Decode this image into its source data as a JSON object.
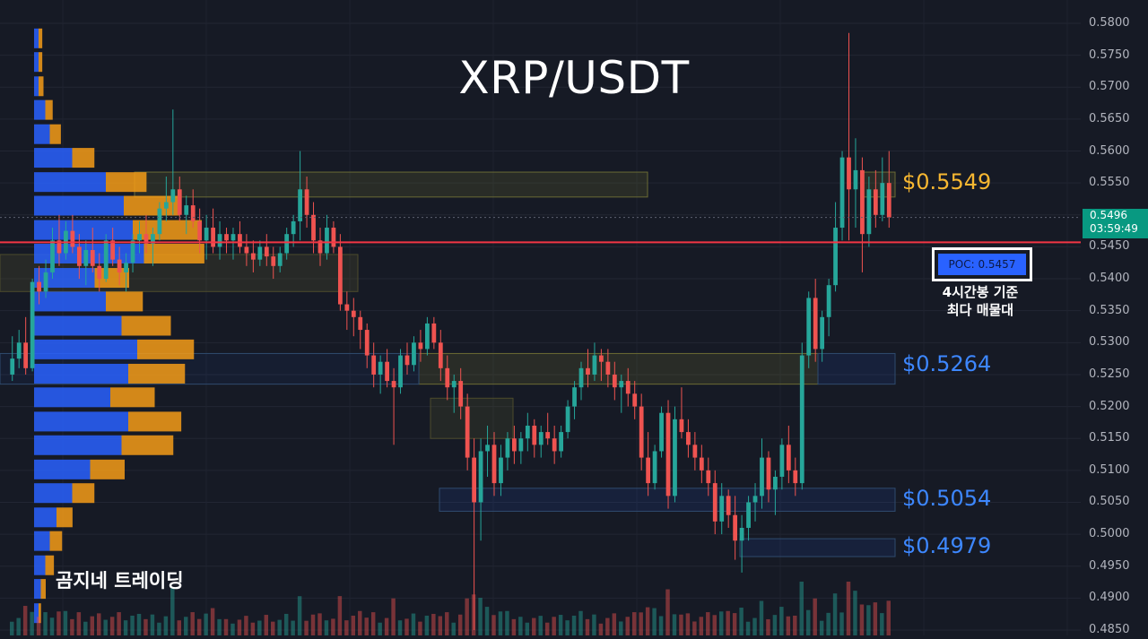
{
  "title": "XRP/USDT",
  "watermark": "곰지네 트레이딩",
  "colors": {
    "background": "#161a25",
    "up": "#26a69a",
    "down": "#ef5350",
    "poc_line": "#f23645",
    "yellow_label": "#f7b731",
    "blue_label": "#3d87ff",
    "vp_blue": "#2962ff",
    "vp_orange": "#f59c17"
  },
  "price_axis": {
    "ticks": [
      "0.5800",
      "0.5750",
      "0.5700",
      "0.5650",
      "0.5600",
      "0.5550",
      "0.5500",
      "0.5450",
      "0.5400",
      "0.5350",
      "0.5300",
      "0.5250",
      "0.5200",
      "0.5150",
      "0.5100",
      "0.5050",
      "0.5000",
      "0.4950",
      "0.4900",
      "0.4850"
    ],
    "current_price": "0.5496",
    "countdown": "03:59:49"
  },
  "levels": [
    {
      "label": "$0.5549",
      "value": 0.5549,
      "color": "yellow"
    },
    {
      "label": "$0.5264",
      "value": 0.5264,
      "color": "blue"
    },
    {
      "label": "$0.5054",
      "value": 0.5054,
      "color": "blue"
    },
    {
      "label": "$0.4979",
      "value": 0.4979,
      "color": "blue"
    }
  ],
  "poc": {
    "label": "POC: 0.5457",
    "value": 0.5457,
    "note_line1": "4시간봉 기준",
    "note_line2": "최다 매물대"
  },
  "chart_data": {
    "type": "candlestick",
    "title": "XRP/USDT",
    "timeframe": "4h",
    "ylim": [
      0.485,
      0.58
    ],
    "grid": true,
    "volume_profile": {
      "bins": [
        {
          "price": 0.5775,
          "up": 0.2,
          "down": 0.3
        },
        {
          "price": 0.5738,
          "up": 0.2,
          "down": 0.3
        },
        {
          "price": 0.57,
          "up": 0.2,
          "down": 0.4
        },
        {
          "price": 0.5663,
          "up": 0.5,
          "down": 0.6
        },
        {
          "price": 0.5625,
          "up": 0.7,
          "down": 0.9
        },
        {
          "price": 0.5588,
          "up": 1.7,
          "down": 1.8
        },
        {
          "price": 0.555,
          "up": 3.2,
          "down": 3.3
        },
        {
          "price": 0.5513,
          "up": 4.0,
          "down": 4.5
        },
        {
          "price": 0.5475,
          "up": 4.4,
          "down": 5.6
        },
        {
          "price": 0.5438,
          "up": 4.9,
          "down": 4.9
        },
        {
          "price": 0.54,
          "up": 2.7,
          "down": 2.8
        },
        {
          "price": 0.5363,
          "up": 3.2,
          "down": 3.0
        },
        {
          "price": 0.5325,
          "up": 3.9,
          "down": 4.0
        },
        {
          "price": 0.5288,
          "up": 4.6,
          "down": 4.6
        },
        {
          "price": 0.525,
          "up": 4.2,
          "down": 4.6
        },
        {
          "price": 0.5213,
          "up": 3.4,
          "down": 3.6
        },
        {
          "price": 0.5175,
          "up": 4.2,
          "down": 4.3
        },
        {
          "price": 0.5138,
          "up": 3.9,
          "down": 4.2
        },
        {
          "price": 0.51,
          "up": 2.5,
          "down": 2.8
        },
        {
          "price": 0.5063,
          "up": 1.7,
          "down": 1.8
        },
        {
          "price": 0.5025,
          "up": 1.0,
          "down": 1.3
        },
        {
          "price": 0.4988,
          "up": 0.7,
          "down": 1.0
        },
        {
          "price": 0.495,
          "up": 0.5,
          "down": 0.7
        },
        {
          "price": 0.4913,
          "up": 0.3,
          "down": 0.4
        },
        {
          "price": 0.4875,
          "up": 0.2,
          "down": 0.2
        }
      ]
    },
    "candles": [
      [
        0.525,
        0.531,
        0.524,
        0.5275
      ],
      [
        0.5275,
        0.532,
        0.526,
        0.53
      ],
      [
        0.53,
        0.534,
        0.525,
        0.526
      ],
      [
        0.526,
        0.54,
        0.5255,
        0.5395
      ],
      [
        0.5395,
        0.542,
        0.536,
        0.538
      ],
      [
        0.538,
        0.543,
        0.537,
        0.541
      ],
      [
        0.541,
        0.548,
        0.54,
        0.546
      ],
      [
        0.546,
        0.55,
        0.542,
        0.544
      ],
      [
        0.544,
        0.549,
        0.543,
        0.5475
      ],
      [
        0.5475,
        0.55,
        0.544,
        0.545
      ],
      [
        0.545,
        0.547,
        0.54,
        0.542
      ],
      [
        0.542,
        0.546,
        0.539,
        0.5445
      ],
      [
        0.5445,
        0.548,
        0.541,
        0.542
      ],
      [
        0.542,
        0.544,
        0.538,
        0.54
      ],
      [
        0.54,
        0.547,
        0.5395,
        0.546
      ],
      [
        0.546,
        0.548,
        0.542,
        0.543
      ],
      [
        0.543,
        0.545,
        0.539,
        0.541
      ],
      [
        0.541,
        0.544,
        0.538,
        0.5425
      ],
      [
        0.5425,
        0.547,
        0.541,
        0.546
      ],
      [
        0.546,
        0.549,
        0.544,
        0.547
      ],
      [
        0.547,
        0.55,
        0.544,
        0.5455
      ],
      [
        0.5455,
        0.548,
        0.542,
        0.547
      ],
      [
        0.547,
        0.552,
        0.546,
        0.551
      ],
      [
        0.551,
        0.556,
        0.549,
        0.552
      ],
      [
        0.552,
        0.5665,
        0.55,
        0.554
      ],
      [
        0.554,
        0.556,
        0.549,
        0.55
      ],
      [
        0.55,
        0.553,
        0.547,
        0.5515
      ],
      [
        0.5515,
        0.554,
        0.548,
        0.549
      ],
      [
        0.549,
        0.551,
        0.544,
        0.546
      ],
      [
        0.546,
        0.55,
        0.543,
        0.548
      ],
      [
        0.548,
        0.551,
        0.544,
        0.545
      ],
      [
        0.545,
        0.549,
        0.543,
        0.547
      ],
      [
        0.547,
        0.548,
        0.544,
        0.546
      ],
      [
        0.546,
        0.548,
        0.543,
        0.547
      ],
      [
        0.547,
        0.549,
        0.544,
        0.545
      ],
      [
        0.545,
        0.547,
        0.542,
        0.544
      ],
      [
        0.544,
        0.546,
        0.541,
        0.543
      ],
      [
        0.543,
        0.546,
        0.542,
        0.545
      ],
      [
        0.545,
        0.547,
        0.542,
        0.5435
      ],
      [
        0.5435,
        0.545,
        0.54,
        0.542
      ],
      [
        0.542,
        0.545,
        0.541,
        0.544
      ],
      [
        0.544,
        0.548,
        0.543,
        0.547
      ],
      [
        0.547,
        0.55,
        0.545,
        0.549
      ],
      [
        0.549,
        0.56,
        0.546,
        0.554
      ],
      [
        0.554,
        0.556,
        0.548,
        0.55
      ],
      [
        0.55,
        0.552,
        0.544,
        0.546
      ],
      [
        0.546,
        0.548,
        0.542,
        0.544
      ],
      [
        0.544,
        0.55,
        0.543,
        0.548
      ],
      [
        0.548,
        0.549,
        0.544,
        0.545
      ],
      [
        0.545,
        0.547,
        0.535,
        0.536
      ],
      [
        0.536,
        0.538,
        0.532,
        0.535
      ],
      [
        0.535,
        0.537,
        0.531,
        0.534
      ],
      [
        0.534,
        0.535,
        0.529,
        0.532
      ],
      [
        0.532,
        0.533,
        0.526,
        0.528
      ],
      [
        0.528,
        0.53,
        0.523,
        0.525
      ],
      [
        0.525,
        0.528,
        0.522,
        0.527
      ],
      [
        0.527,
        0.529,
        0.523,
        0.524
      ],
      [
        0.524,
        0.526,
        0.514,
        0.523
      ],
      [
        0.523,
        0.529,
        0.522,
        0.528
      ],
      [
        0.528,
        0.53,
        0.525,
        0.5265
      ],
      [
        0.5265,
        0.531,
        0.5255,
        0.53
      ],
      [
        0.53,
        0.532,
        0.527,
        0.529
      ],
      [
        0.529,
        0.534,
        0.528,
        0.533
      ],
      [
        0.533,
        0.534,
        0.529,
        0.53
      ],
      [
        0.53,
        0.532,
        0.524,
        0.526
      ],
      [
        0.526,
        0.528,
        0.521,
        0.523
      ],
      [
        0.523,
        0.525,
        0.519,
        0.524
      ],
      [
        0.524,
        0.526,
        0.518,
        0.52
      ],
      [
        0.52,
        0.522,
        0.51,
        0.512
      ],
      [
        0.512,
        0.515,
        0.485,
        0.505
      ],
      [
        0.505,
        0.515,
        0.499,
        0.513
      ],
      [
        0.513,
        0.517,
        0.509,
        0.514
      ],
      [
        0.514,
        0.516,
        0.506,
        0.508
      ],
      [
        0.508,
        0.514,
        0.506,
        0.512
      ],
      [
        0.512,
        0.516,
        0.51,
        0.515
      ],
      [
        0.515,
        0.517,
        0.511,
        0.513
      ],
      [
        0.513,
        0.516,
        0.511,
        0.515
      ],
      [
        0.515,
        0.519,
        0.513,
        0.517
      ],
      [
        0.517,
        0.518,
        0.512,
        0.514
      ],
      [
        0.514,
        0.517,
        0.512,
        0.516
      ],
      [
        0.516,
        0.519,
        0.514,
        0.515
      ],
      [
        0.515,
        0.517,
        0.511,
        0.513
      ],
      [
        0.513,
        0.517,
        0.512,
        0.516
      ],
      [
        0.516,
        0.521,
        0.515,
        0.52
      ],
      [
        0.52,
        0.524,
        0.518,
        0.523
      ],
      [
        0.523,
        0.527,
        0.521,
        0.526
      ],
      [
        0.526,
        0.529,
        0.523,
        0.525
      ],
      [
        0.525,
        0.53,
        0.524,
        0.528
      ],
      [
        0.528,
        0.529,
        0.524,
        0.527
      ],
      [
        0.527,
        0.529,
        0.523,
        0.525
      ],
      [
        0.525,
        0.527,
        0.521,
        0.523
      ],
      [
        0.523,
        0.525,
        0.519,
        0.524
      ],
      [
        0.524,
        0.526,
        0.52,
        0.522
      ],
      [
        0.522,
        0.524,
        0.518,
        0.52
      ],
      [
        0.52,
        0.522,
        0.51,
        0.512
      ],
      [
        0.512,
        0.516,
        0.506,
        0.508
      ],
      [
        0.508,
        0.514,
        0.507,
        0.513
      ],
      [
        0.513,
        0.52,
        0.512,
        0.519
      ],
      [
        0.519,
        0.521,
        0.504,
        0.506
      ],
      [
        0.506,
        0.52,
        0.505,
        0.518
      ],
      [
        0.518,
        0.523,
        0.515,
        0.516
      ],
      [
        0.516,
        0.518,
        0.512,
        0.514
      ],
      [
        0.514,
        0.516,
        0.51,
        0.512
      ],
      [
        0.512,
        0.514,
        0.508,
        0.51
      ],
      [
        0.51,
        0.512,
        0.506,
        0.508
      ],
      [
        0.508,
        0.51,
        0.5,
        0.502
      ],
      [
        0.502,
        0.508,
        0.5,
        0.506
      ],
      [
        0.506,
        0.507,
        0.501,
        0.503
      ],
      [
        0.503,
        0.506,
        0.496,
        0.499
      ],
      [
        0.499,
        0.503,
        0.494,
        0.501
      ],
      [
        0.501,
        0.506,
        0.499,
        0.505
      ],
      [
        0.505,
        0.508,
        0.502,
        0.506
      ],
      [
        0.506,
        0.515,
        0.504,
        0.512
      ],
      [
        0.512,
        0.513,
        0.505,
        0.507
      ],
      [
        0.507,
        0.51,
        0.503,
        0.509
      ],
      [
        0.509,
        0.515,
        0.507,
        0.514
      ],
      [
        0.514,
        0.517,
        0.508,
        0.51
      ],
      [
        0.51,
        0.512,
        0.506,
        0.508
      ],
      [
        0.508,
        0.53,
        0.507,
        0.528
      ],
      [
        0.528,
        0.538,
        0.526,
        0.537
      ],
      [
        0.537,
        0.54,
        0.527,
        0.529
      ],
      [
        0.529,
        0.535,
        0.527,
        0.534
      ],
      [
        0.534,
        0.54,
        0.531,
        0.539
      ],
      [
        0.539,
        0.552,
        0.538,
        0.548
      ],
      [
        0.548,
        0.56,
        0.546,
        0.559
      ],
      [
        0.559,
        0.5785,
        0.546,
        0.554
      ],
      [
        0.554,
        0.562,
        0.548,
        0.557
      ],
      [
        0.557,
        0.559,
        0.541,
        0.547
      ],
      [
        0.547,
        0.556,
        0.545,
        0.554
      ],
      [
        0.554,
        0.557,
        0.548,
        0.55
      ],
      [
        0.55,
        0.559,
        0.549,
        0.555
      ],
      [
        0.555,
        0.56,
        0.548,
        0.5496
      ]
    ]
  }
}
